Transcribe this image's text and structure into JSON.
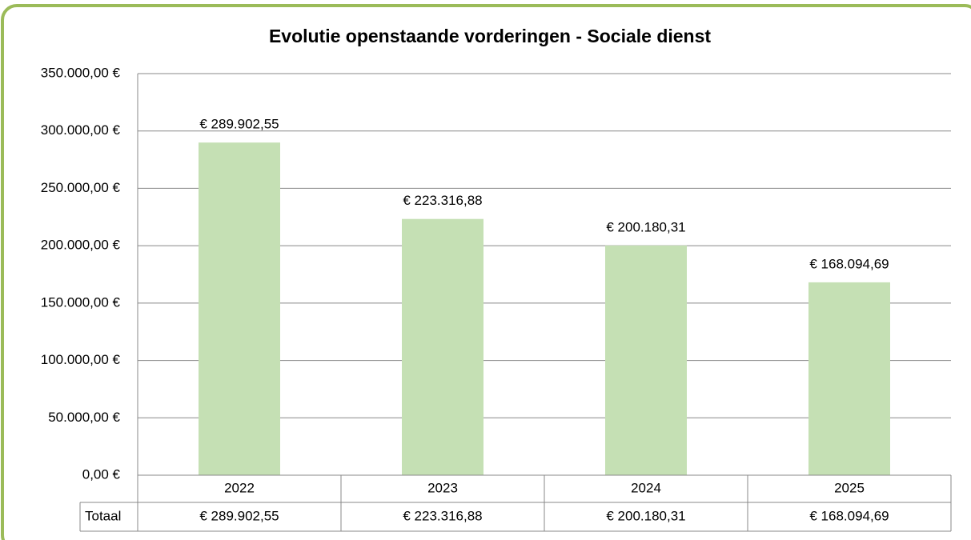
{
  "chart_data": {
    "type": "bar",
    "title": "Evolutie openstaande vorderingen - Sociale dienst",
    "categories": [
      "2022",
      "2023",
      "2024",
      "2025"
    ],
    "series": [
      {
        "name": "Totaal",
        "color": "#c5e0b4",
        "values": [
          289902.55,
          223316.88,
          200180.31,
          168094.69
        ],
        "value_labels": [
          "€ 289.902,55",
          "€ 223.316,88",
          "€ 200.180,31",
          "€ 168.094,69"
        ]
      }
    ],
    "ylim": [
      0,
      350000
    ],
    "yticks": [
      {
        "value": 0,
        "label": "0,00 €"
      },
      {
        "value": 50000,
        "label": "50.000,00 €"
      },
      {
        "value": 100000,
        "label": "100.000,00 €"
      },
      {
        "value": 150000,
        "label": "150.000,00 €"
      },
      {
        "value": 200000,
        "label": "200.000,00 €"
      },
      {
        "value": 250000,
        "label": "250.000,00 €"
      },
      {
        "value": 300000,
        "label": "300.000,00 €"
      },
      {
        "value": 350000,
        "label": "350.000,00 €"
      }
    ],
    "grid": true,
    "data_table": true
  }
}
